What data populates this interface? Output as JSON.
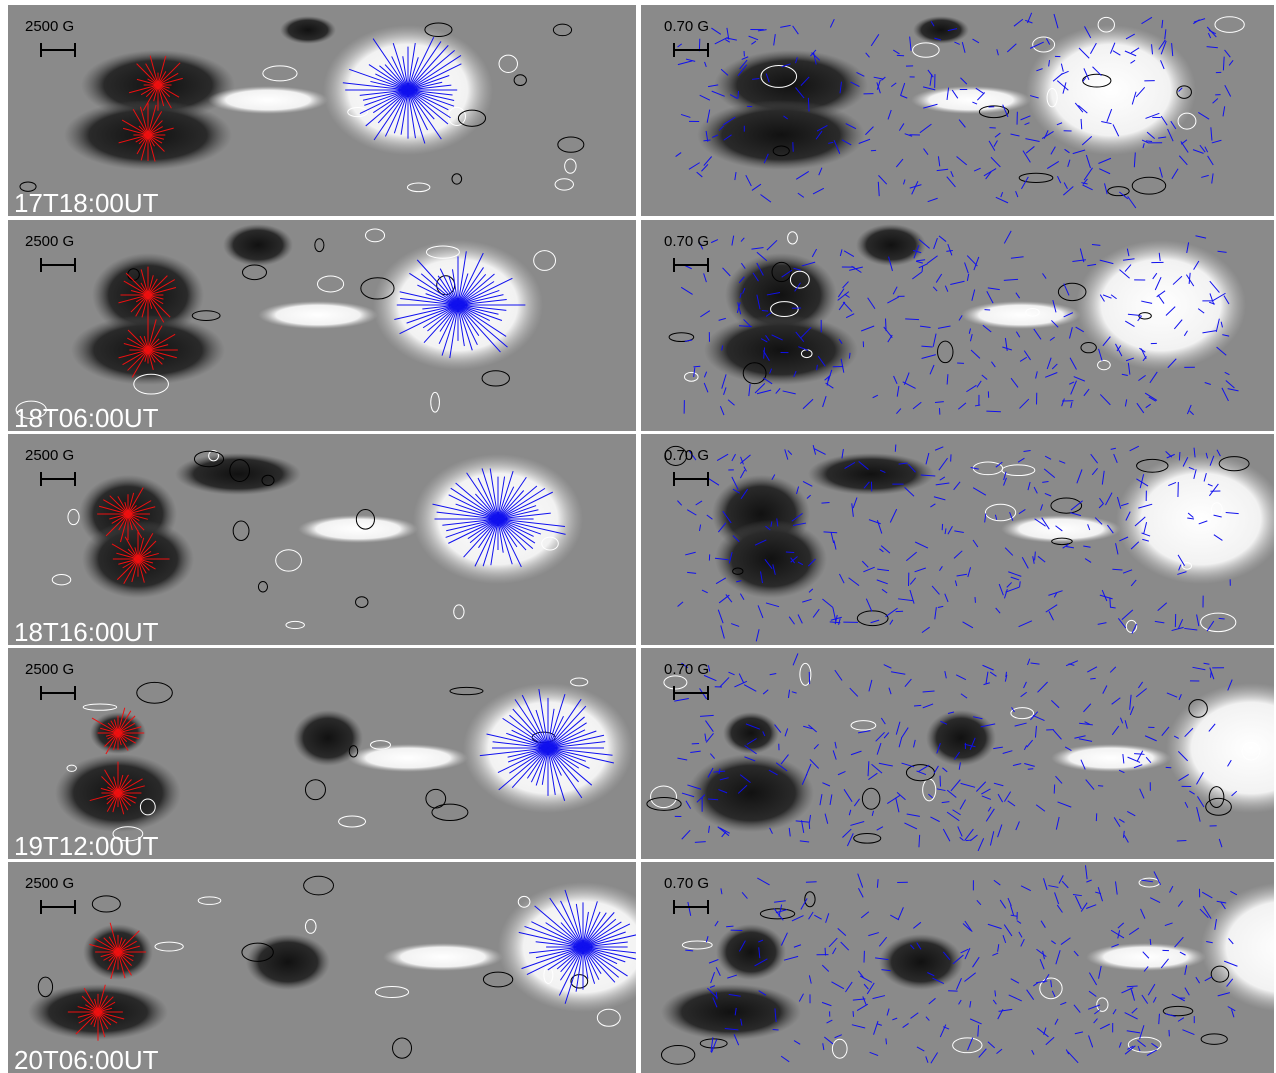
{
  "rows": [
    {
      "time": "17T18:00UT",
      "left_scale": "2500 G",
      "right_scale": "0.70 G"
    },
    {
      "time": "18T06:00UT",
      "left_scale": "2500 G",
      "right_scale": "0.70 G"
    },
    {
      "time": "18T16:00UT",
      "left_scale": "2500 G",
      "right_scale": "0.70 G"
    },
    {
      "time": "19T12:00UT",
      "left_scale": "2500 G",
      "right_scale": "0.70 G"
    },
    {
      "time": "20T06:00UT",
      "left_scale": "2500 G",
      "right_scale": "0.70 G"
    }
  ]
}
